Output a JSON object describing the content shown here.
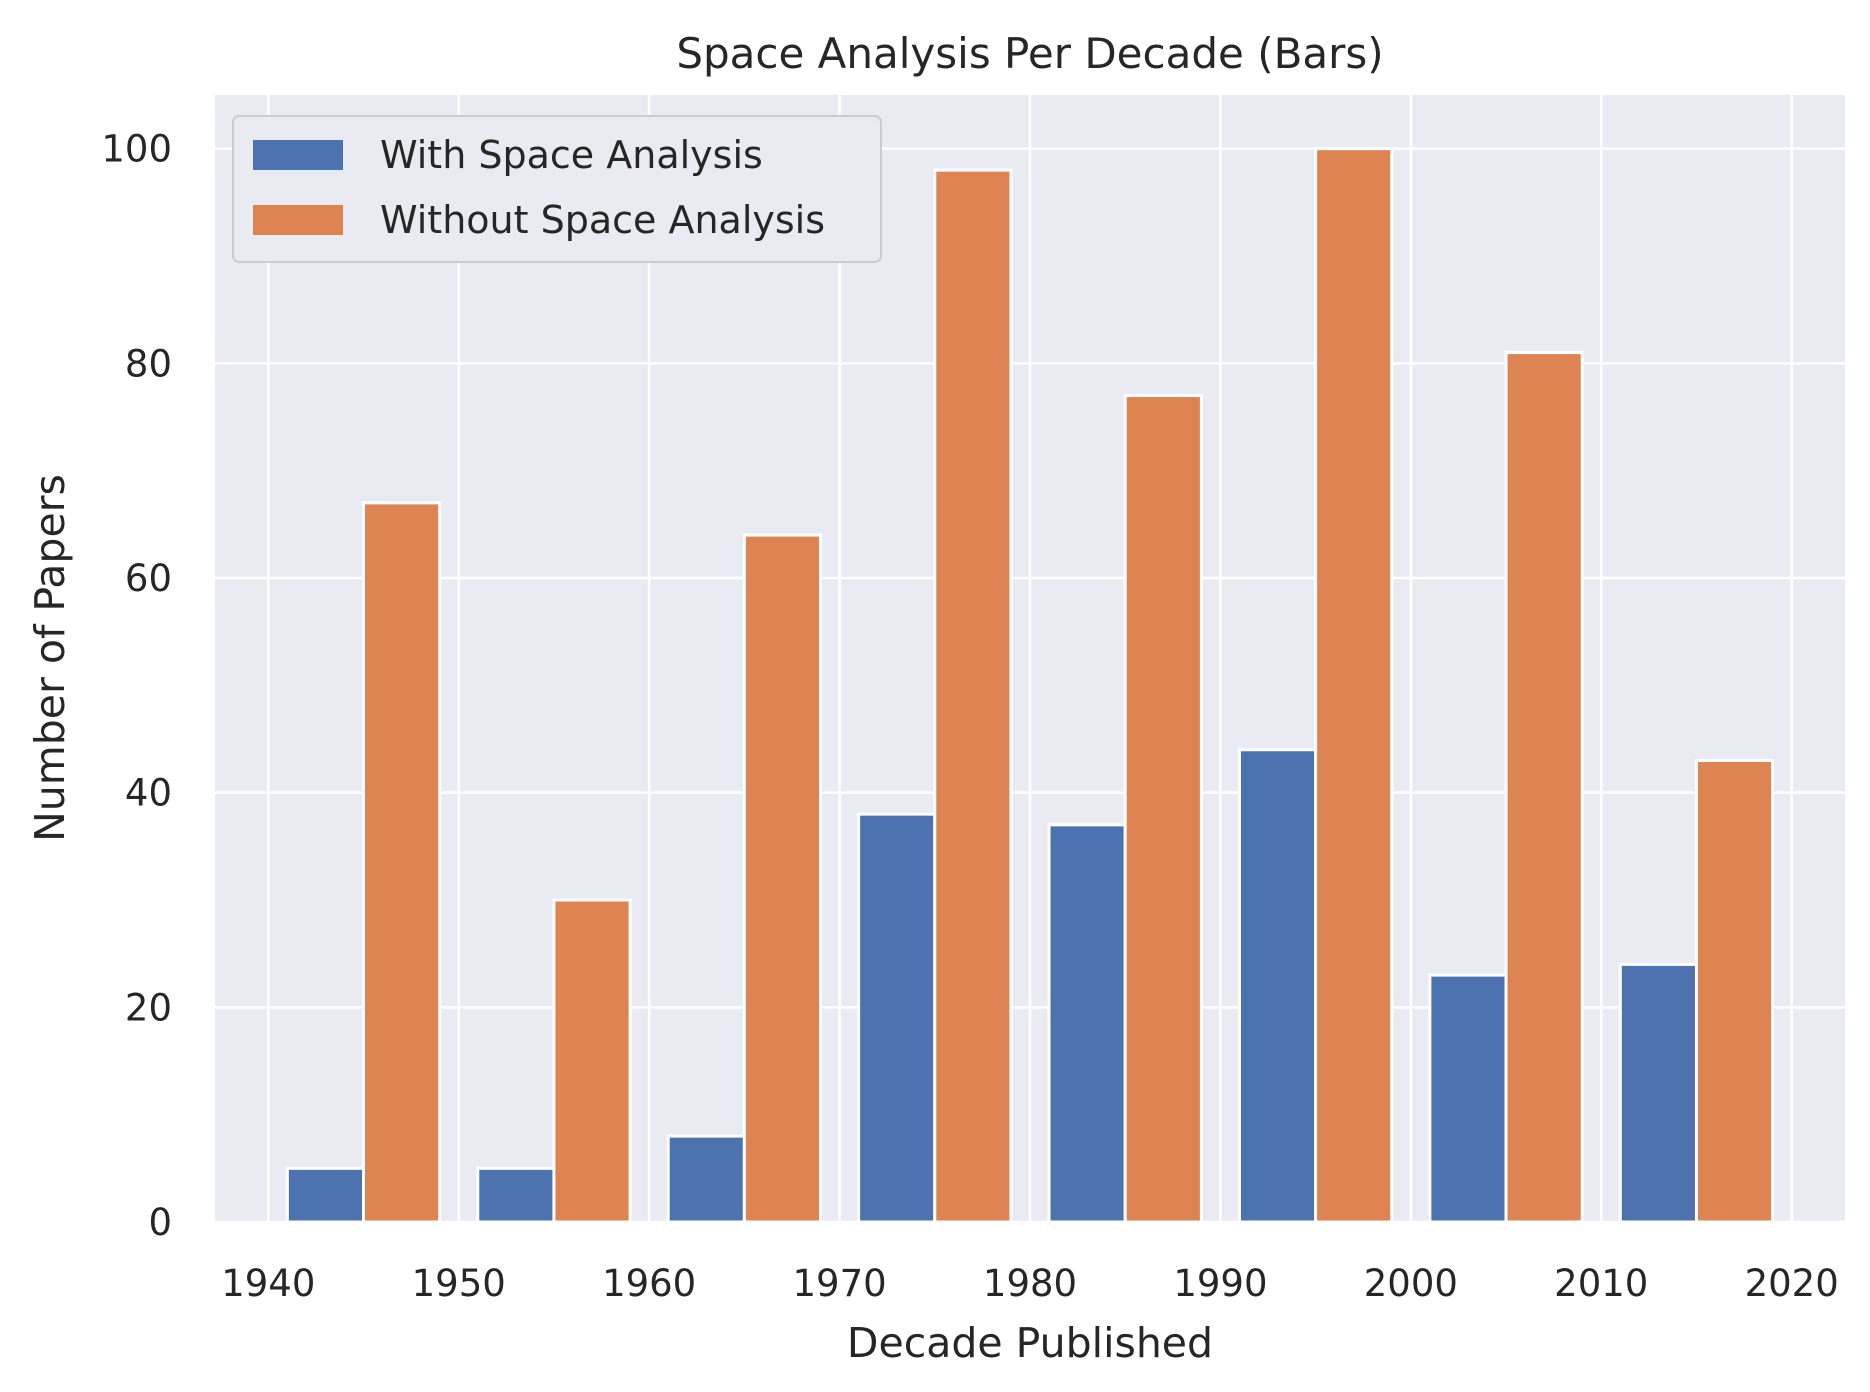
{
  "chart_data": {
    "type": "bar",
    "title": "Space Analysis Per Decade (Bars)",
    "xlabel": "Decade Published",
    "ylabel": "Number of Papers",
    "x_ticks": [
      1940,
      1950,
      1960,
      1970,
      1980,
      1990,
      2000,
      2010,
      2020
    ],
    "x_range": [
      1937.2,
      2022.8
    ],
    "y_ticks": [
      0,
      20,
      40,
      60,
      80,
      100
    ],
    "ylim": [
      0,
      105
    ],
    "categories": [
      1940,
      1950,
      1960,
      1970,
      1980,
      1990,
      2000,
      2010
    ],
    "series": [
      {
        "name": "With Space Analysis",
        "color": "#4c72b0",
        "values": [
          5,
          5,
          8,
          38,
          37,
          44,
          23,
          24
        ]
      },
      {
        "name": "Without Space Analysis",
        "color": "#dd8452",
        "values": [
          67,
          30,
          64,
          98,
          77,
          100,
          81,
          43
        ]
      }
    ],
    "grid": true,
    "legend_position": "top-left",
    "colors": {
      "plot_background": "#eaeaf2",
      "grid": "#ffffff",
      "text": "#262626"
    }
  }
}
